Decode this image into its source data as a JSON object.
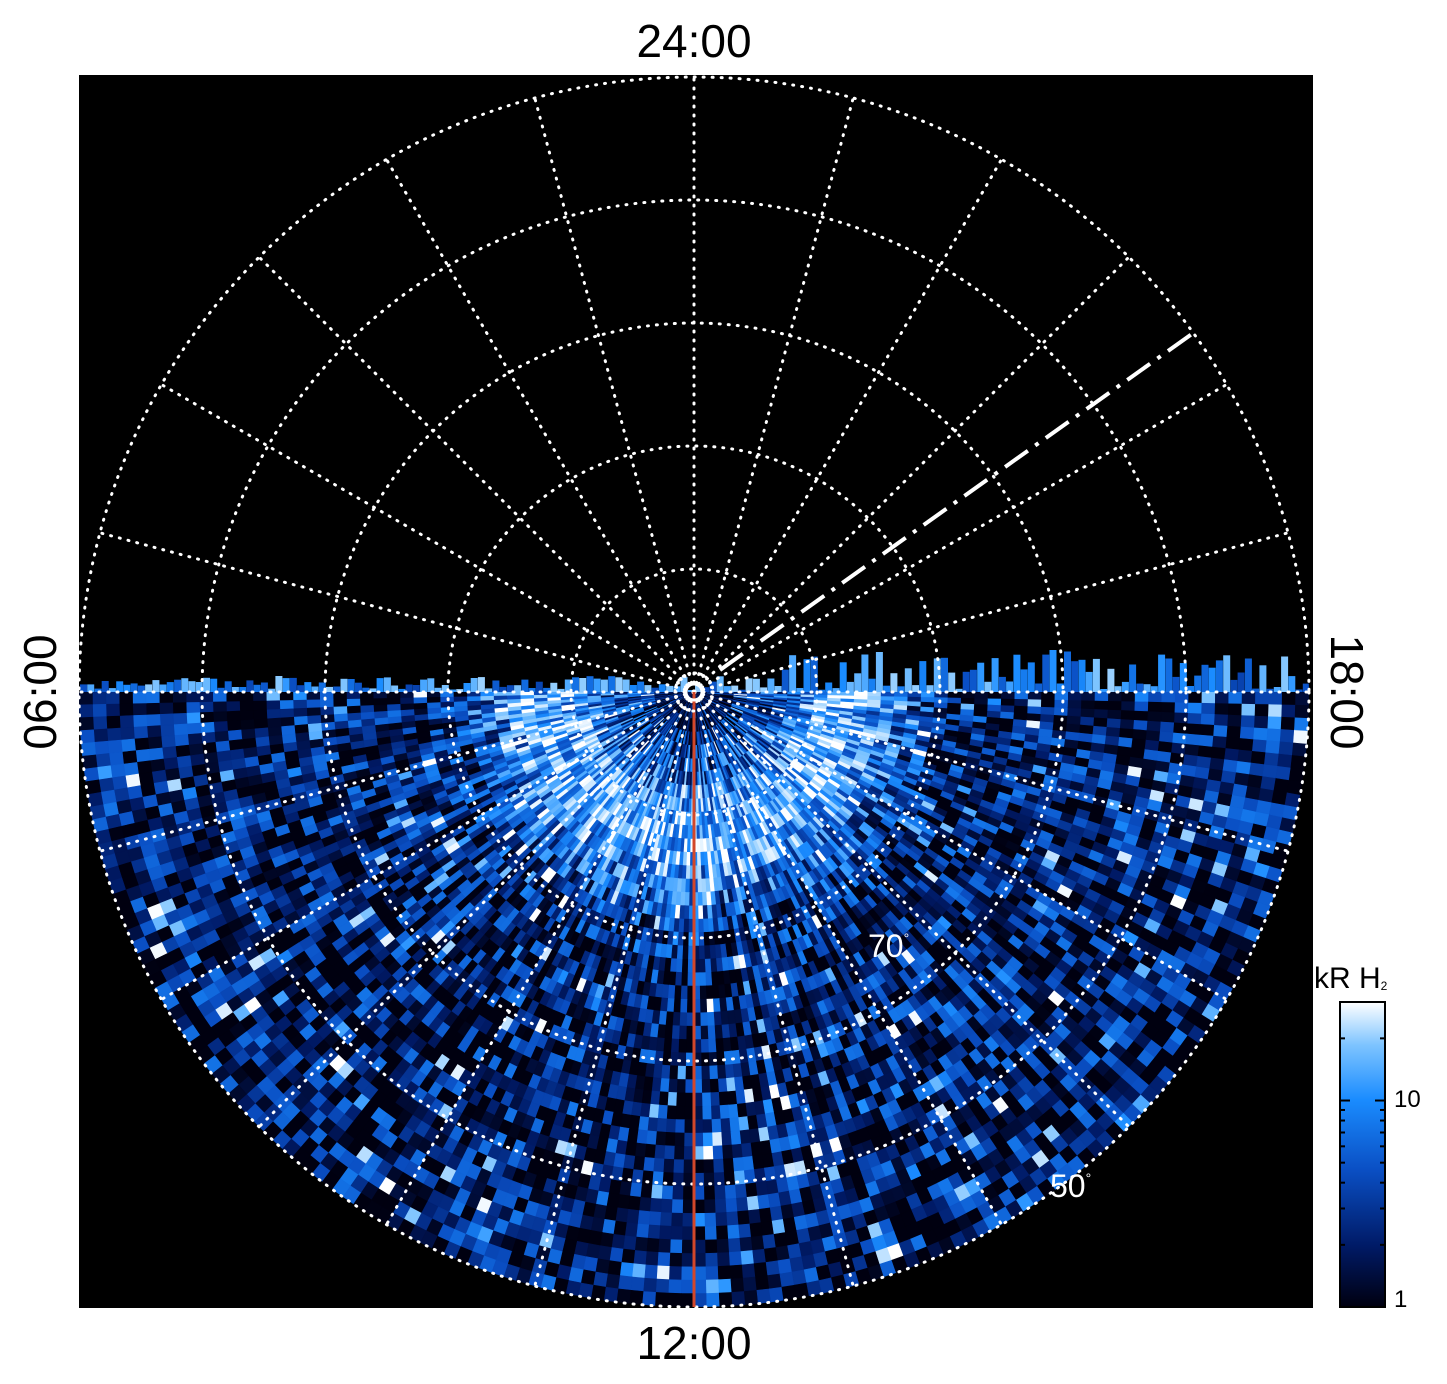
{
  "chart_data": {
    "type": "heatmap",
    "projection": "polar",
    "local_time_labels": {
      "top": "24:00",
      "bottom": "12:00",
      "left": "06:00",
      "right": "18:00"
    },
    "latitude_labels": [
      {
        "value": 70,
        "text": "70",
        "unit": "°"
      },
      {
        "value": 50,
        "text": "50",
        "unit": "°"
      }
    ],
    "colorbar": {
      "title": "kR H",
      "title_subscript": "2",
      "scale": "log",
      "range": [
        1,
        30
      ],
      "ticks": [
        {
          "value": 10,
          "label": "10"
        },
        {
          "value": 1,
          "label": "1"
        }
      ]
    },
    "colors": {
      "background": "#000000",
      "grid": "#ffffff",
      "meridian_line": "#d2472a",
      "colormap": [
        "#000010",
        "#001a66",
        "#0a4fc4",
        "#1a8cff",
        "#7ec4ff",
        "#ffffff"
      ]
    },
    "grid": true,
    "colatitude_circles_deg": [
      10,
      20,
      30,
      40
    ],
    "meridian_spacing_hours": 1
  }
}
